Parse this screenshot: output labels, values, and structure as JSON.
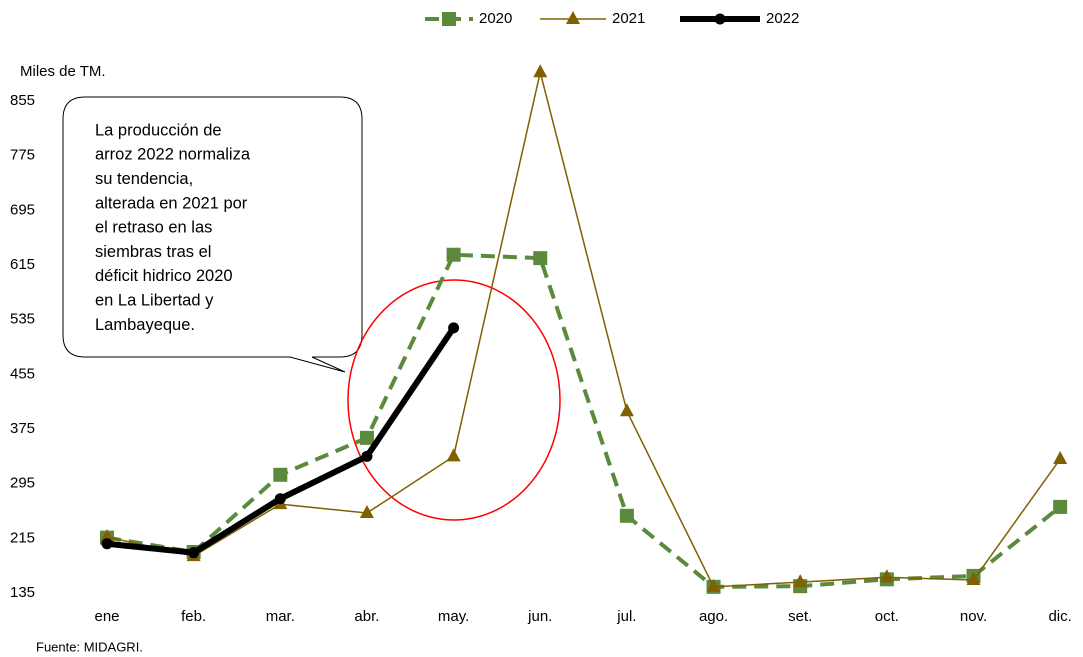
{
  "chart_data": {
    "type": "line",
    "y_label": "Miles de TM.",
    "source": "Fuente: MIDAGRI.",
    "categories": [
      "ene",
      "feb.",
      "mar.",
      "abr.",
      "may.",
      "jun.",
      "jul.",
      "ago.",
      "set.",
      "oct.",
      "nov.",
      "dic."
    ],
    "series": [
      {
        "name": "2020",
        "color": "#5b8a3c",
        "line_style": "dashed",
        "line_width": 4,
        "marker": "square",
        "values": [
          216,
          195,
          308,
          362,
          630,
          625,
          248,
          144,
          145,
          155,
          160,
          261
        ]
      },
      {
        "name": "2021",
        "color": "#806000",
        "line_style": "solid",
        "line_width": 1.5,
        "marker": "triangle",
        "values": [
          217,
          189,
          265,
          252,
          335,
          897,
          401,
          144,
          151,
          158,
          154,
          331
        ]
      },
      {
        "name": "2022",
        "color": "#000000",
        "line_style": "solid",
        "line_width": 6,
        "marker": "circle",
        "values": [
          207,
          194,
          273,
          335,
          523,
          null,
          null,
          null,
          null,
          null,
          null,
          null
        ]
      }
    ],
    "ylim": [
      135,
      935
    ],
    "yticks": [
      135,
      215,
      295,
      375,
      455,
      535,
      615,
      695,
      775,
      855
    ],
    "grid": false,
    "legend": "top",
    "annotation": [
      "La producción de",
      "arroz 2022  normaliza",
      "su tendencia,",
      "alterada en 2021  por",
      "el retraso en las",
      "siembras  tras el",
      "déficit  hidrico 2020",
      "en  La Libertad  y",
      "Lambayeque."
    ]
  }
}
